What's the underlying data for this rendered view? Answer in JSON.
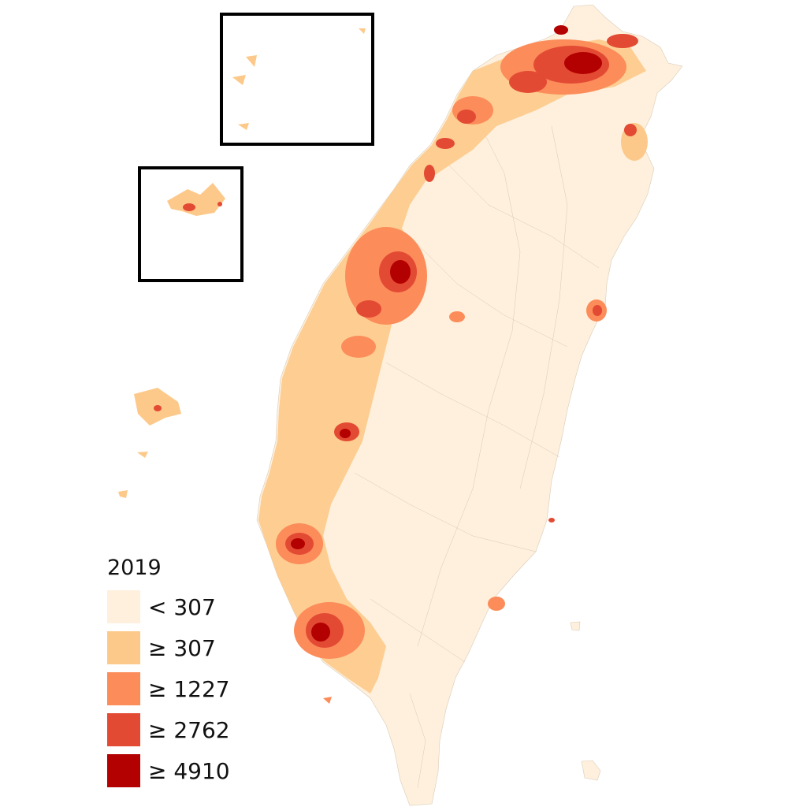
{
  "legend": {
    "title": "2019",
    "items": [
      {
        "label": "< 307",
        "color": "#fef0dc"
      },
      {
        "label": "≥ 307",
        "color": "#fdc98a"
      },
      {
        "label": "≥ 1227",
        "color": "#fc8c59"
      },
      {
        "label": "≥ 2762",
        "color": "#e34a33"
      },
      {
        "label": "≥ 4910",
        "color": "#b30000"
      }
    ]
  },
  "inset_frames": [
    "matsu-inset-frame",
    "kinmen-inset-frame"
  ]
}
